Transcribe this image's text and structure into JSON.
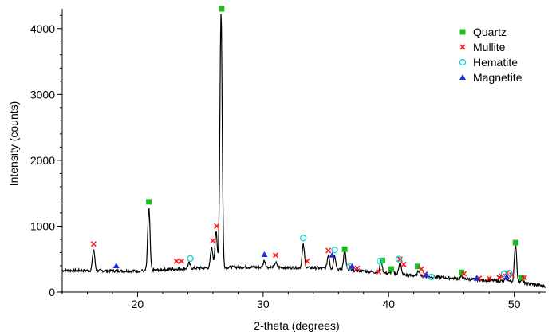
{
  "chart_data": {
    "type": "line",
    "title": "",
    "xlabel": "2-theta (degrees)",
    "ylabel": "Intensity (counts)",
    "xlim": [
      14,
      52.5
    ],
    "ylim": [
      0,
      4300
    ],
    "x_ticks": [
      20,
      30,
      40,
      50
    ],
    "y_ticks": [
      0,
      1000,
      2000,
      3000,
      4000
    ],
    "grid": false,
    "legend_position": "top-right",
    "series": [
      {
        "name": "",
        "type": "line",
        "color": "#000000",
        "baseline": [
          [
            14,
            330
          ],
          [
            20,
            320
          ],
          [
            24,
            360
          ],
          [
            28,
            380
          ],
          [
            34,
            370
          ],
          [
            38,
            320
          ],
          [
            42,
            250
          ],
          [
            46,
            200
          ],
          [
            50,
            160
          ],
          [
            52.5,
            90
          ]
        ],
        "peaks": [
          [
            16.5,
            650
          ],
          [
            20.9,
            1280
          ],
          [
            24.1,
            440
          ],
          [
            25.9,
            680
          ],
          [
            26.25,
            920
          ],
          [
            26.65,
            4260
          ],
          [
            30.1,
            480
          ],
          [
            31.0,
            450
          ],
          [
            33.2,
            720
          ],
          [
            35.2,
            560
          ],
          [
            35.7,
            560
          ],
          [
            36.5,
            640
          ],
          [
            39.4,
            470
          ],
          [
            40.3,
            340
          ],
          [
            40.9,
            460
          ],
          [
            42.4,
            330
          ],
          [
            45.8,
            240
          ],
          [
            49.4,
            220
          ],
          [
            50.1,
            730
          ],
          [
            50.6,
            200
          ]
        ]
      }
    ],
    "markers": [
      {
        "name": "Quartz",
        "shape": "square",
        "color": "#1fbb1f",
        "points": [
          [
            20.9,
            1370
          ],
          [
            26.7,
            4300
          ],
          [
            36.5,
            650
          ],
          [
            39.5,
            480
          ],
          [
            40.2,
            350
          ],
          [
            42.3,
            390
          ],
          [
            45.8,
            300
          ],
          [
            50.1,
            750
          ],
          [
            50.6,
            220
          ]
        ]
      },
      {
        "name": "Mullite",
        "shape": "x",
        "color": "#ff1a1a",
        "points": [
          [
            16.5,
            730
          ],
          [
            23.1,
            470
          ],
          [
            23.5,
            470
          ],
          [
            26.0,
            780
          ],
          [
            26.3,
            1000
          ],
          [
            31.0,
            560
          ],
          [
            33.5,
            470
          ],
          [
            35.2,
            630
          ],
          [
            37.0,
            380
          ],
          [
            37.5,
            360
          ],
          [
            39.2,
            310
          ],
          [
            40.9,
            500
          ],
          [
            41.2,
            420
          ],
          [
            42.6,
            350
          ],
          [
            42.9,
            270
          ],
          [
            46.0,
            280
          ],
          [
            47.2,
            210
          ],
          [
            48.0,
            210
          ],
          [
            48.8,
            220
          ],
          [
            49.0,
            240
          ],
          [
            49.4,
            290
          ],
          [
            49.8,
            260
          ],
          [
            50.8,
            220
          ]
        ]
      },
      {
        "name": "Hematite",
        "shape": "circle",
        "color": "#18d4d4",
        "points": [
          [
            24.2,
            510
          ],
          [
            33.2,
            820
          ],
          [
            35.7,
            640
          ],
          [
            36.9,
            390
          ],
          [
            39.3,
            470
          ],
          [
            40.8,
            500
          ],
          [
            43.4,
            230
          ],
          [
            49.2,
            280
          ],
          [
            49.6,
            290
          ]
        ]
      },
      {
        "name": "Magnetite",
        "shape": "triangle",
        "color": "#1a2fe0",
        "points": [
          [
            18.3,
            400
          ],
          [
            30.1,
            570
          ],
          [
            35.5,
            560
          ],
          [
            37.1,
            390
          ],
          [
            43.0,
            260
          ],
          [
            47.0,
            210
          ],
          [
            49.4,
            230
          ]
        ]
      }
    ]
  }
}
